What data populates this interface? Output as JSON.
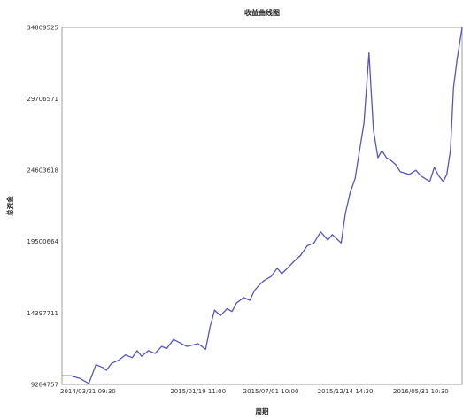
{
  "chart_data": {
    "type": "line",
    "title": "收益曲线图",
    "xlabel": "周期",
    "ylabel": "总资金",
    "yticks": [
      9284757,
      14397711,
      19500664,
      24603618,
      29706571,
      34809525
    ],
    "ylim": [
      9284757,
      34809525
    ],
    "xticks": [
      "2014/03/21 09:30",
      "2015/01/19 11:00",
      "2015/07/01 10:00",
      "2015/12/14 14:30",
      "2016/05/31 10:30"
    ],
    "xlim": [
      "2014/03/21 09:30",
      "2016/08/31 15:00"
    ],
    "grid": true,
    "color": "#5555c0",
    "series": [
      {
        "x": [
          "2014/03/21 09:30",
          "2014/04/10 10:00",
          "2014/05/01 10:00",
          "2014/05/20 10:00",
          "2014/06/05 10:00",
          "2014/06/20 10:00",
          "2014/06/28 10:00",
          "2014/07/10 10:00",
          "2014/07/25 10:00",
          "2014/08/10 10:00",
          "2014/08/25 10:00",
          "2014/09/05 10:00",
          "2014/09/15 10:00",
          "2014/09/30 10:00",
          "2014/10/15 10:00",
          "2014/10/30 10:00",
          "2014/11/10 10:00",
          "2014/11/25 10:00",
          "2014/12/10 10:00",
          "2014/12/25 10:00",
          "2015/01/19 11:00",
          "2015/02/05 10:00",
          "2015/02/15 10:00",
          "2015/02/25 10:00",
          "2015/03/10 10:00",
          "2015/03/25 10:00",
          "2015/04/05 10:00",
          "2015/04/15 10:00",
          "2015/05/01 10:00",
          "2015/05/15 10:00",
          "2015/05/25 10:00",
          "2015/06/05 10:00",
          "2015/06/15 10:00",
          "2015/07/01 10:00",
          "2015/07/15 10:00",
          "2015/07/25 10:00",
          "2015/08/10 10:00",
          "2015/08/25 10:00",
          "2015/09/05 10:00",
          "2015/09/20 10:00",
          "2015/10/05 10:00",
          "2015/10/20 10:00",
          "2015/11/05 10:00",
          "2015/11/15 10:00",
          "2015/11/25 10:00",
          "2015/12/05 10:00",
          "2015/12/14 14:30",
          "2015/12/25 10:00",
          "2016/01/05 10:00",
          "2016/01/15 10:00",
          "2016/01/25 10:00",
          "2016/02/05 10:00",
          "2016/02/15 10:00",
          "2016/02/25 10:00",
          "2016/03/05 10:00",
          "2016/03/15 10:00",
          "2016/03/25 10:00",
          "2016/04/05 10:00",
          "2016/04/15 10:00",
          "2016/05/05 10:00",
          "2016/05/20 10:00",
          "2016/05/31 10:30",
          "2016/06/10 10:00",
          "2016/06/20 10:00",
          "2016/06/30 10:00",
          "2016/07/10 10:00",
          "2016/07/20 10:00",
          "2016/07/28 10:00",
          "2016/08/05 10:00",
          "2016/08/12 10:00",
          "2016/08/20 10:00",
          "2016/08/31 15:00"
        ],
        "y": [
          9900000,
          9900000,
          9700000,
          9350000,
          10700000,
          10500000,
          10300000,
          10800000,
          11000000,
          11400000,
          11200000,
          11700000,
          11300000,
          11700000,
          11500000,
          12000000,
          11850000,
          12500000,
          12250000,
          12000000,
          12200000,
          11800000,
          13400000,
          14600000,
          14200000,
          14700000,
          14500000,
          15100000,
          15500000,
          15300000,
          16000000,
          16400000,
          16700000,
          17000000,
          17600000,
          17200000,
          17700000,
          18200000,
          18500000,
          19200000,
          19400000,
          20200000,
          19600000,
          20000000,
          19700000,
          19400000,
          21500000,
          23000000,
          24000000,
          26000000,
          28000000,
          33000000,
          27500000,
          25500000,
          26000000,
          25500000,
          25300000,
          25000000,
          24500000,
          24300000,
          24600000,
          24200000,
          24000000,
          23800000,
          24800000,
          24200000,
          23800000,
          24300000,
          26000000,
          30500000,
          32500000,
          34800000
        ]
      }
    ]
  }
}
